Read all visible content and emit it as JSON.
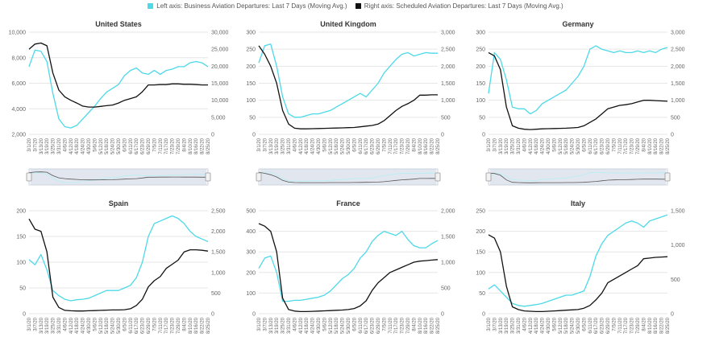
{
  "legend": {
    "left_label": "Left axis: Business Aviation Departures: Last 7 Days (Moving Avg.)",
    "right_label": "Right axis: Scheduled Aviation Departures: Last 7 Days (Moving Avg.)",
    "left_color": "#4dd9e8",
    "right_color": "#111111"
  },
  "chart_data": [
    {
      "type": "line",
      "title": "United States",
      "x": [
        "3/1/20",
        "3/7/20",
        "3/13/20",
        "3/19/20",
        "3/25/20",
        "3/31/20",
        "4/6/20",
        "4/12/20",
        "4/18/20",
        "4/24/20",
        "4/30/20",
        "5/6/20",
        "5/12/20",
        "5/18/20",
        "5/24/20",
        "5/30/20",
        "6/5/20",
        "6/11/20",
        "6/17/20",
        "6/23/20",
        "6/29/20",
        "7/5/20",
        "7/11/20",
        "7/17/20",
        "7/23/20",
        "7/29/20",
        "8/4/20",
        "8/10/20",
        "8/16/20",
        "8/22/20",
        "8/25/20"
      ],
      "ylim_left": [
        2000,
        10000
      ],
      "yticks_left": [
        2000,
        4000,
        6000,
        8000,
        10000
      ],
      "ylim_right": [
        0,
        30000
      ],
      "yticks_right": [
        0,
        5000,
        10000,
        15000,
        20000,
        25000,
        30000
      ],
      "series": [
        {
          "axis": "left",
          "values": [
            7300,
            8600,
            8500,
            7700,
            5200,
            3200,
            2600,
            2500,
            2700,
            3200,
            3700,
            4200,
            4800,
            5300,
            5600,
            5900,
            6600,
            7000,
            7200,
            6800,
            6700,
            7000,
            6700,
            7000,
            7100,
            7300,
            7300,
            7600,
            7700,
            7600,
            7300
          ]
        },
        {
          "axis": "right",
          "values": [
            25000,
            26500,
            26800,
            26000,
            18000,
            13000,
            11000,
            10000,
            9200,
            8300,
            8000,
            8000,
            8200,
            8400,
            8600,
            9200,
            10000,
            10500,
            11000,
            12500,
            14500,
            14500,
            14600,
            14600,
            14800,
            14800,
            14700,
            14700,
            14600,
            14500,
            14500
          ]
        }
      ]
    },
    {
      "type": "line",
      "title": "United Kingdom",
      "x": [
        "3/1/20",
        "3/7/20",
        "3/13/20",
        "3/19/20",
        "3/25/20",
        "3/31/20",
        "4/6/20",
        "4/12/20",
        "4/18/20",
        "4/24/20",
        "4/30/20",
        "5/6/20",
        "5/12/20",
        "5/18/20",
        "5/24/20",
        "5/30/20",
        "6/5/20",
        "6/11/20",
        "6/17/20",
        "6/23/20",
        "6/29/20",
        "7/5/20",
        "7/11/20",
        "7/17/20",
        "7/23/20",
        "7/29/20",
        "8/4/20",
        "8/10/20",
        "8/16/20",
        "8/22/20",
        "8/25/20"
      ],
      "ylim_left": [
        0,
        300
      ],
      "yticks_left": [
        0,
        50,
        100,
        150,
        200,
        250,
        300
      ],
      "ylim_right": [
        0,
        3000
      ],
      "yticks_right": [
        0,
        500,
        1000,
        1500,
        2000,
        2500,
        3000
      ],
      "series": [
        {
          "axis": "left",
          "values": [
            210,
            260,
            265,
            200,
            110,
            60,
            50,
            50,
            55,
            60,
            60,
            65,
            70,
            80,
            90,
            100,
            110,
            120,
            110,
            130,
            150,
            180,
            200,
            220,
            235,
            240,
            230,
            235,
            240,
            238,
            238
          ]
        },
        {
          "axis": "right",
          "values": [
            2600,
            2350,
            2000,
            1500,
            700,
            300,
            180,
            160,
            160,
            165,
            170,
            175,
            180,
            185,
            190,
            195,
            200,
            220,
            240,
            260,
            300,
            400,
            550,
            700,
            820,
            900,
            1000,
            1150,
            1150,
            1160,
            1160
          ]
        }
      ]
    },
    {
      "type": "line",
      "title": "Germany",
      "x": [
        "3/1/20",
        "3/7/20",
        "3/13/20",
        "3/19/20",
        "3/25/20",
        "3/31/20",
        "4/6/20",
        "4/12/20",
        "4/18/20",
        "4/24/20",
        "4/30/20",
        "5/6/20",
        "5/12/20",
        "5/18/20",
        "5/24/20",
        "5/30/20",
        "6/5/20",
        "6/11/20",
        "6/17/20",
        "6/23/20",
        "6/29/20",
        "7/5/20",
        "7/11/20",
        "7/17/20",
        "7/23/20",
        "7/29/20",
        "8/4/20",
        "8/10/20",
        "8/16/20",
        "8/22/20",
        "8/25/20"
      ],
      "ylim_left": [
        0,
        300
      ],
      "yticks_left": [
        0,
        50,
        100,
        150,
        200,
        250,
        300
      ],
      "ylim_right": [
        0,
        3000
      ],
      "yticks_right": [
        0,
        500,
        1000,
        1500,
        2000,
        2500,
        3000
      ],
      "series": [
        {
          "axis": "left",
          "values": [
            120,
            240,
            220,
            160,
            80,
            75,
            75,
            60,
            70,
            90,
            100,
            110,
            120,
            130,
            150,
            170,
            200,
            250,
            260,
            250,
            245,
            240,
            245,
            240,
            240,
            245,
            240,
            245,
            240,
            250,
            255
          ]
        },
        {
          "axis": "right",
          "values": [
            2400,
            2300,
            1900,
            800,
            250,
            180,
            150,
            140,
            150,
            160,
            165,
            170,
            175,
            180,
            190,
            200,
            250,
            350,
            450,
            600,
            750,
            800,
            850,
            870,
            900,
            950,
            1000,
            1000,
            990,
            980,
            970
          ]
        }
      ]
    },
    {
      "type": "line",
      "title": "Spain",
      "x": [
        "3/1/20",
        "3/7/20",
        "3/13/20",
        "3/19/20",
        "3/25/20",
        "3/31/20",
        "4/6/20",
        "4/12/20",
        "4/18/20",
        "4/24/20",
        "4/30/20",
        "5/6/20",
        "5/12/20",
        "5/18/20",
        "5/24/20",
        "5/30/20",
        "6/5/20",
        "6/11/20",
        "6/17/20",
        "6/23/20",
        "6/29/20",
        "7/5/20",
        "7/11/20",
        "7/17/20",
        "7/23/20",
        "7/29/20",
        "8/4/20",
        "8/10/20",
        "8/16/20",
        "8/22/20",
        "8/25/20"
      ],
      "ylim_left": [
        0,
        200
      ],
      "yticks_left": [
        0,
        50,
        100,
        150,
        200
      ],
      "ylim_right": [
        0,
        2500
      ],
      "yticks_right": [
        0,
        500,
        1000,
        1500,
        2000,
        2500
      ],
      "series": [
        {
          "axis": "left",
          "values": [
            105,
            95,
            115,
            85,
            45,
            35,
            28,
            25,
            27,
            28,
            30,
            35,
            40,
            45,
            45,
            45,
            50,
            55,
            70,
            100,
            150,
            175,
            180,
            185,
            190,
            185,
            175,
            160,
            150,
            145,
            140
          ]
        },
        {
          "axis": "right",
          "values": [
            2300,
            2050,
            2000,
            1500,
            400,
            150,
            80,
            70,
            65,
            65,
            70,
            75,
            80,
            85,
            90,
            90,
            95,
            120,
            200,
            350,
            650,
            800,
            900,
            1100,
            1200,
            1300,
            1500,
            1550,
            1550,
            1540,
            1520
          ]
        }
      ]
    },
    {
      "type": "line",
      "title": "France",
      "x": [
        "3/1/20",
        "3/7/20",
        "3/13/20",
        "3/19/20",
        "3/25/20",
        "3/31/20",
        "4/6/20",
        "4/12/20",
        "4/18/20",
        "4/24/20",
        "4/30/20",
        "5/6/20",
        "5/12/20",
        "5/18/20",
        "5/24/20",
        "5/30/20",
        "6/5/20",
        "6/11/20",
        "6/17/20",
        "6/23/20",
        "6/29/20",
        "7/5/20",
        "7/11/20",
        "7/17/20",
        "7/23/20",
        "7/29/20",
        "8/4/20",
        "8/10/20",
        "8/16/20",
        "8/22/20",
        "8/25/20"
      ],
      "ylim_left": [
        0,
        500
      ],
      "yticks_left": [
        0,
        100,
        200,
        300,
        400,
        500
      ],
      "ylim_right": [
        0,
        2000
      ],
      "yticks_right": [
        0,
        500,
        1000,
        1500,
        2000
      ],
      "series": [
        {
          "axis": "left",
          "values": [
            220,
            270,
            280,
            200,
            60,
            60,
            65,
            65,
            70,
            75,
            80,
            90,
            110,
            140,
            170,
            190,
            220,
            270,
            300,
            350,
            380,
            400,
            390,
            380,
            400,
            360,
            330,
            320,
            320,
            340,
            355
          ]
        },
        {
          "axis": "right",
          "values": [
            1750,
            1700,
            1600,
            1200,
            300,
            80,
            50,
            40,
            40,
            45,
            50,
            55,
            60,
            65,
            70,
            80,
            100,
            150,
            250,
            450,
            600,
            700,
            800,
            850,
            900,
            950,
            1000,
            1020,
            1030,
            1040,
            1050
          ]
        }
      ]
    },
    {
      "type": "line",
      "title": "Italy",
      "x": [
        "3/1/20",
        "3/7/20",
        "3/13/20",
        "3/19/20",
        "3/25/20",
        "3/31/20",
        "4/6/20",
        "4/12/20",
        "4/18/20",
        "4/24/20",
        "4/30/20",
        "5/6/20",
        "5/12/20",
        "5/18/20",
        "5/24/20",
        "5/30/20",
        "6/5/20",
        "6/11/20",
        "6/17/20",
        "6/23/20",
        "6/29/20",
        "7/5/20",
        "7/11/20",
        "7/17/20",
        "7/23/20",
        "7/29/20",
        "8/4/20",
        "8/10/20",
        "8/16/20",
        "8/22/20",
        "8/25/20"
      ],
      "ylim_left": [
        0,
        250
      ],
      "yticks_left": [
        0,
        50,
        100,
        150,
        200,
        250
      ],
      "ylim_right": [
        0,
        1500
      ],
      "yticks_right": [
        0,
        500,
        1000,
        1500
      ],
      "series": [
        {
          "axis": "left",
          "values": [
            60,
            70,
            55,
            40,
            25,
            20,
            18,
            20,
            22,
            25,
            30,
            35,
            40,
            45,
            45,
            50,
            55,
            90,
            140,
            170,
            190,
            200,
            210,
            220,
            225,
            220,
            210,
            225,
            230,
            235,
            240
          ]
        },
        {
          "axis": "right",
          "values": [
            1150,
            1100,
            900,
            400,
            100,
            60,
            40,
            35,
            30,
            30,
            35,
            40,
            45,
            50,
            55,
            60,
            80,
            120,
            200,
            300,
            450,
            500,
            550,
            600,
            650,
            700,
            800,
            810,
            820,
            825,
            830
          ]
        }
      ]
    }
  ]
}
